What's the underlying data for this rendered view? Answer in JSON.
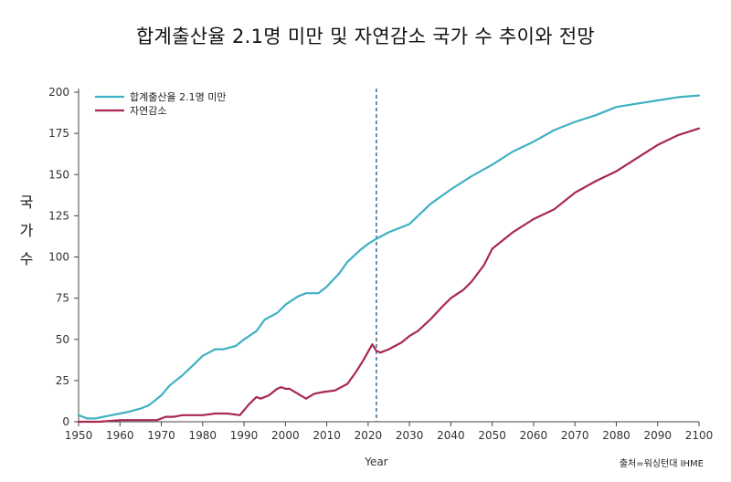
{
  "title": "합계출산율 2.1명 미만 및 자연감소 국가 수 추이와 전망",
  "source": "출처=워싱턴대 IHME",
  "chart_data": {
    "type": "line",
    "ylabel": [
      "국",
      "가",
      "수"
    ],
    "xlabel": "Year",
    "xlim": [
      1950,
      2100
    ],
    "ylim": [
      0,
      200
    ],
    "xticks": [
      1950,
      1960,
      1970,
      1980,
      1990,
      2000,
      2010,
      2020,
      2030,
      2040,
      2050,
      2060,
      2070,
      2080,
      2090,
      2100
    ],
    "yticks": [
      0,
      25,
      50,
      75,
      100,
      125,
      150,
      175,
      200
    ],
    "grid": false,
    "legend_position": "top-left",
    "reference_line": {
      "x": 2022,
      "style": "dashed",
      "color": "#2f5f86"
    },
    "series": [
      {
        "name": "합계출산율 2.1명 미만",
        "color": "#3fb0c4",
        "x": [
          1950,
          1952,
          1954,
          1956,
          1958,
          1960,
          1962,
          1965,
          1967,
          1968,
          1970,
          1972,
          1975,
          1978,
          1980,
          1983,
          1985,
          1988,
          1990,
          1993,
          1995,
          1998,
          2000,
          2003,
          2005,
          2008,
          2010,
          2013,
          2015,
          2018,
          2020,
          2022,
          2025,
          2028,
          2030,
          2035,
          2040,
          2045,
          2050,
          2055,
          2060,
          2065,
          2070,
          2075,
          2080,
          2085,
          2090,
          2095,
          2100
        ],
        "values": [
          4,
          2,
          2,
          3,
          4,
          5,
          6,
          8,
          10,
          12,
          16,
          22,
          28,
          35,
          40,
          44,
          44,
          46,
          50,
          55,
          62,
          66,
          71,
          76,
          78,
          78,
          82,
          90,
          97,
          104,
          108,
          111,
          115,
          118,
          120,
          132,
          141,
          149,
          156,
          164,
          170,
          177,
          182,
          186,
          191,
          193,
          195,
          197,
          198
        ]
      },
      {
        "name": "자연감소",
        "color": "#a8284f",
        "x": [
          1950,
          1955,
          1960,
          1965,
          1969,
          1971,
          1973,
          1975,
          1980,
          1983,
          1986,
          1989,
          1991,
          1993,
          1994,
          1996,
          1998,
          1999,
          2000,
          2001,
          2003,
          2005,
          2007,
          2009,
          2012,
          2015,
          2017,
          2019,
          2021,
          2022,
          2023,
          2025,
          2028,
          2030,
          2032,
          2035,
          2038,
          2040,
          2043,
          2045,
          2048,
          2050,
          2055,
          2060,
          2065,
          2070,
          2075,
          2080,
          2085,
          2090,
          2095,
          2100
        ],
        "values": [
          0,
          0,
          1,
          1,
          1,
          3,
          3,
          4,
          4,
          5,
          5,
          4,
          10,
          15,
          14,
          16,
          20,
          21,
          20,
          20,
          17,
          14,
          17,
          18,
          19,
          23,
          30,
          38,
          47,
          43,
          42,
          44,
          48,
          52,
          55,
          62,
          70,
          75,
          80,
          85,
          95,
          105,
          115,
          123,
          129,
          139,
          146,
          152,
          160,
          168,
          174,
          178
        ]
      }
    ]
  }
}
